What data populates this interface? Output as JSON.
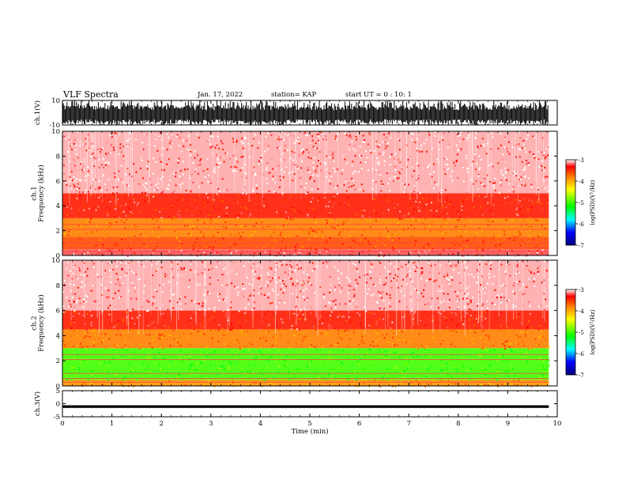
{
  "header": {
    "title": "VLF Spectra",
    "date": "Jan. 17, 2022",
    "station": "station= KAP",
    "start": "start UT = 0 : 10: 1"
  },
  "chart_data": [
    {
      "type": "line",
      "panel": "ch1-waveform",
      "ylabel": "ch.1(V)",
      "ylim": [
        -10,
        10
      ],
      "yticks": [
        "10",
        "-10"
      ],
      "xlim": [
        0,
        10
      ],
      "data_extent_min": 9.83,
      "trace": "dense noise waveform, clipping near ±10 V",
      "color": "#000000"
    },
    {
      "type": "heatmap",
      "panel": "ch1-spectrogram",
      "ylabel": "ch.1\nFrequency (kHz)",
      "ylim": [
        0,
        10
      ],
      "yticks": [
        "0",
        "2",
        "4",
        "6",
        "8",
        "10"
      ],
      "xlim": [
        0,
        10
      ],
      "bands_khz": [
        {
          "from": 0.0,
          "to": 0.5,
          "level": -3.2
        },
        {
          "from": 0.5,
          "to": 1.5,
          "level": -3.6
        },
        {
          "from": 1.5,
          "to": 3.0,
          "level": -3.8
        },
        {
          "from": 3.0,
          "to": 5.0,
          "level": -3.4
        },
        {
          "from": 5.0,
          "to": 10.0,
          "level": -3.1
        }
      ],
      "colorbar": {
        "label": "log(PSD)(V²/Hz)",
        "range": [
          -7,
          -3
        ],
        "ticks": [
          "-3",
          "-4",
          "-5",
          "-6",
          "-7"
        ]
      }
    },
    {
      "type": "heatmap",
      "panel": "ch2-spectrogram",
      "ylabel": "ch.2\nFrequency (kHz)",
      "ylim": [
        0,
        10
      ],
      "yticks": [
        "0",
        "2",
        "4",
        "6",
        "8",
        "10"
      ],
      "xlim": [
        0,
        10
      ],
      "bands_khz": [
        {
          "from": 0.0,
          "to": 0.5,
          "level": -3.9
        },
        {
          "from": 0.5,
          "to": 3.0,
          "level": -5.0
        },
        {
          "from": 3.0,
          "to": 4.5,
          "level": -3.8
        },
        {
          "from": 4.5,
          "to": 6.0,
          "level": -3.4
        },
        {
          "from": 6.0,
          "to": 10.0,
          "level": -3.1
        }
      ],
      "colorbar": {
        "label": "log(PSD)(V²/Hz)",
        "range": [
          -7,
          -3
        ],
        "ticks": [
          "-3",
          "-4",
          "-5",
          "-6",
          "-7"
        ]
      }
    },
    {
      "type": "line",
      "panel": "ch3-waveform",
      "ylabel": "ch.3(V)",
      "ylim": [
        -5,
        5
      ],
      "yticks": [
        "5",
        "0",
        "-5"
      ],
      "xlim": [
        0,
        10
      ],
      "data_extent_min": 9.83,
      "trace": "thin band around -1 V",
      "color": "#000000"
    }
  ],
  "xaxis": {
    "label": "Time (min)",
    "ticks": [
      "0",
      "1",
      "2",
      "3",
      "4",
      "5",
      "6",
      "7",
      "8",
      "9",
      "10"
    ]
  }
}
